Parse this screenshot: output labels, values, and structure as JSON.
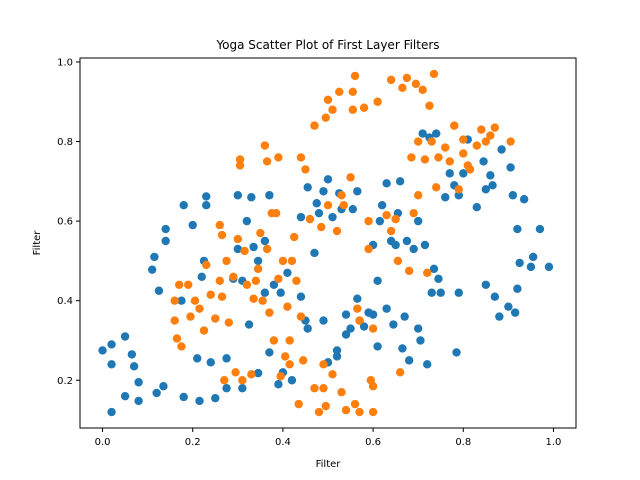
{
  "chart_data": {
    "type": "scatter",
    "title": "Yoga Scatter Plot of First Layer Filters",
    "xlabel": "Filter",
    "ylabel": "Filter",
    "xlim": [
      -0.05,
      1.05
    ],
    "ylim": [
      0.08,
      1.01
    ],
    "xticks": [
      "0.0",
      "0.2",
      "0.4",
      "0.6",
      "0.8",
      "1.0"
    ],
    "yticks": [
      "0.2",
      "0.4",
      "0.6",
      "0.8",
      "1.0"
    ],
    "grid": false,
    "series": [
      {
        "color": "#1f77b4",
        "points": [
          [
            0.0,
            0.275
          ],
          [
            0.02,
            0.29
          ],
          [
            0.02,
            0.24
          ],
          [
            0.02,
            0.12
          ],
          [
            0.05,
            0.31
          ],
          [
            0.05,
            0.16
          ],
          [
            0.065,
            0.265
          ],
          [
            0.07,
            0.235
          ],
          [
            0.08,
            0.195
          ],
          [
            0.08,
            0.148
          ],
          [
            0.11,
            0.478
          ],
          [
            0.115,
            0.51
          ],
          [
            0.12,
            0.168
          ],
          [
            0.125,
            0.425
          ],
          [
            0.135,
            0.185
          ],
          [
            0.14,
            0.58
          ],
          [
            0.14,
            0.55
          ],
          [
            0.175,
            0.4
          ],
          [
            0.18,
            0.64
          ],
          [
            0.18,
            0.158
          ],
          [
            0.2,
            0.59
          ],
          [
            0.21,
            0.255
          ],
          [
            0.215,
            0.148
          ],
          [
            0.22,
            0.46
          ],
          [
            0.225,
            0.5
          ],
          [
            0.23,
            0.64
          ],
          [
            0.23,
            0.662
          ],
          [
            0.24,
            0.245
          ],
          [
            0.25,
            0.155
          ],
          [
            0.275,
            0.255
          ],
          [
            0.275,
            0.18
          ],
          [
            0.29,
            0.455
          ],
          [
            0.3,
            0.665
          ],
          [
            0.3,
            0.53
          ],
          [
            0.31,
            0.18
          ],
          [
            0.31,
            0.45
          ],
          [
            0.32,
            0.6
          ],
          [
            0.325,
            0.34
          ],
          [
            0.33,
            0.66
          ],
          [
            0.335,
            0.535
          ],
          [
            0.345,
            0.218
          ],
          [
            0.345,
            0.5
          ],
          [
            0.36,
            0.42
          ],
          [
            0.36,
            0.55
          ],
          [
            0.37,
            0.665
          ],
          [
            0.37,
            0.27
          ],
          [
            0.38,
            0.44
          ],
          [
            0.39,
            0.19
          ],
          [
            0.395,
            0.42
          ],
          [
            0.4,
            0.22
          ],
          [
            0.41,
            0.47
          ],
          [
            0.42,
            0.2
          ],
          [
            0.44,
            0.61
          ],
          [
            0.44,
            0.41
          ],
          [
            0.45,
            0.35
          ],
          [
            0.455,
            0.33
          ],
          [
            0.455,
            0.685
          ],
          [
            0.47,
            0.52
          ],
          [
            0.475,
            0.645
          ],
          [
            0.48,
            0.62
          ],
          [
            0.49,
            0.675
          ],
          [
            0.49,
            0.35
          ],
          [
            0.5,
            0.705
          ],
          [
            0.5,
            0.245
          ],
          [
            0.51,
            0.61
          ],
          [
            0.52,
            0.26
          ],
          [
            0.52,
            0.275
          ],
          [
            0.525,
            0.67
          ],
          [
            0.53,
            0.63
          ],
          [
            0.54,
            0.365
          ],
          [
            0.54,
            0.315
          ],
          [
            0.55,
            0.33
          ],
          [
            0.555,
            0.63
          ],
          [
            0.565,
            0.405
          ],
          [
            0.565,
            0.675
          ],
          [
            0.57,
            0.35
          ],
          [
            0.58,
            0.335
          ],
          [
            0.59,
            0.37
          ],
          [
            0.6,
            0.54
          ],
          [
            0.6,
            0.365
          ],
          [
            0.61,
            0.285
          ],
          [
            0.61,
            0.45
          ],
          [
            0.615,
            0.6
          ],
          [
            0.62,
            0.64
          ],
          [
            0.63,
            0.695
          ],
          [
            0.63,
            0.38
          ],
          [
            0.64,
            0.55
          ],
          [
            0.645,
            0.34
          ],
          [
            0.65,
            0.54
          ],
          [
            0.655,
            0.62
          ],
          [
            0.66,
            0.7
          ],
          [
            0.665,
            0.28
          ],
          [
            0.67,
            0.36
          ],
          [
            0.675,
            0.55
          ],
          [
            0.68,
            0.25
          ],
          [
            0.69,
            0.53
          ],
          [
            0.7,
            0.6
          ],
          [
            0.7,
            0.33
          ],
          [
            0.705,
            0.3
          ],
          [
            0.71,
            0.82
          ],
          [
            0.715,
            0.54
          ],
          [
            0.72,
            0.24
          ],
          [
            0.725,
            0.81
          ],
          [
            0.73,
            0.42
          ],
          [
            0.735,
            0.48
          ],
          [
            0.74,
            0.82
          ],
          [
            0.745,
            0.455
          ],
          [
            0.75,
            0.42
          ],
          [
            0.76,
            0.66
          ],
          [
            0.77,
            0.72
          ],
          [
            0.78,
            0.69
          ],
          [
            0.785,
            0.27
          ],
          [
            0.79,
            0.42
          ],
          [
            0.79,
            0.665
          ],
          [
            0.8,
            0.72
          ],
          [
            0.81,
            0.805
          ],
          [
            0.83,
            0.635
          ],
          [
            0.845,
            0.75
          ],
          [
            0.85,
            0.68
          ],
          [
            0.85,
            0.44
          ],
          [
            0.86,
            0.715
          ],
          [
            0.865,
            0.69
          ],
          [
            0.87,
            0.41
          ],
          [
            0.88,
            0.36
          ],
          [
            0.885,
            0.78
          ],
          [
            0.9,
            0.385
          ],
          [
            0.905,
            0.735
          ],
          [
            0.91,
            0.665
          ],
          [
            0.915,
            0.37
          ],
          [
            0.92,
            0.58
          ],
          [
            0.92,
            0.43
          ],
          [
            0.925,
            0.495
          ],
          [
            0.935,
            0.655
          ],
          [
            0.95,
            0.485
          ],
          [
            0.955,
            0.51
          ],
          [
            0.97,
            0.58
          ],
          [
            0.99,
            0.485
          ]
        ]
      },
      {
        "color": "#ff7f0e",
        "points": [
          [
            0.16,
            0.4
          ],
          [
            0.16,
            0.35
          ],
          [
            0.165,
            0.305
          ],
          [
            0.17,
            0.44
          ],
          [
            0.175,
            0.285
          ],
          [
            0.19,
            0.44
          ],
          [
            0.195,
            0.36
          ],
          [
            0.205,
            0.4
          ],
          [
            0.215,
            0.38
          ],
          [
            0.225,
            0.325
          ],
          [
            0.23,
            0.49
          ],
          [
            0.24,
            0.415
          ],
          [
            0.25,
            0.355
          ],
          [
            0.26,
            0.45
          ],
          [
            0.26,
            0.59
          ],
          [
            0.265,
            0.565
          ],
          [
            0.265,
            0.41
          ],
          [
            0.27,
            0.2
          ],
          [
            0.275,
            0.5
          ],
          [
            0.28,
            0.345
          ],
          [
            0.29,
            0.46
          ],
          [
            0.295,
            0.22
          ],
          [
            0.3,
            0.555
          ],
          [
            0.305,
            0.74
          ],
          [
            0.305,
            0.755
          ],
          [
            0.31,
            0.2
          ],
          [
            0.315,
            0.525
          ],
          [
            0.32,
            0.44
          ],
          [
            0.33,
            0.215
          ],
          [
            0.335,
            0.405
          ],
          [
            0.34,
            0.45
          ],
          [
            0.345,
            0.48
          ],
          [
            0.35,
            0.57
          ],
          [
            0.355,
            0.4
          ],
          [
            0.36,
            0.79
          ],
          [
            0.365,
            0.75
          ],
          [
            0.365,
            0.53
          ],
          [
            0.37,
            0.37
          ],
          [
            0.375,
            0.62
          ],
          [
            0.38,
            0.3
          ],
          [
            0.385,
            0.62
          ],
          [
            0.39,
            0.455
          ],
          [
            0.39,
            0.76
          ],
          [
            0.395,
            0.21
          ],
          [
            0.4,
            0.5
          ],
          [
            0.405,
            0.26
          ],
          [
            0.41,
            0.385
          ],
          [
            0.415,
            0.3
          ],
          [
            0.415,
            0.24
          ],
          [
            0.42,
            0.5
          ],
          [
            0.425,
            0.56
          ],
          [
            0.43,
            0.45
          ],
          [
            0.435,
            0.14
          ],
          [
            0.44,
            0.76
          ],
          [
            0.44,
            0.36
          ],
          [
            0.445,
            0.25
          ],
          [
            0.45,
            0.73
          ],
          [
            0.46,
            0.605
          ],
          [
            0.47,
            0.18
          ],
          [
            0.47,
            0.84
          ],
          [
            0.48,
            0.12
          ],
          [
            0.485,
            0.585
          ],
          [
            0.49,
            0.24
          ],
          [
            0.49,
            0.18
          ],
          [
            0.495,
            0.135
          ],
          [
            0.495,
            0.86
          ],
          [
            0.5,
            0.905
          ],
          [
            0.5,
            0.64
          ],
          [
            0.51,
            0.88
          ],
          [
            0.51,
            0.215
          ],
          [
            0.52,
            0.575
          ],
          [
            0.525,
            0.925
          ],
          [
            0.53,
            0.665
          ],
          [
            0.53,
            0.17
          ],
          [
            0.535,
            0.64
          ],
          [
            0.54,
            0.125
          ],
          [
            0.55,
            0.71
          ],
          [
            0.555,
            0.925
          ],
          [
            0.555,
            0.88
          ],
          [
            0.56,
            0.965
          ],
          [
            0.56,
            0.14
          ],
          [
            0.565,
            0.38
          ],
          [
            0.57,
            0.12
          ],
          [
            0.57,
            0.35
          ],
          [
            0.58,
            0.885
          ],
          [
            0.59,
            0.6
          ],
          [
            0.59,
            0.53
          ],
          [
            0.595,
            0.2
          ],
          [
            0.6,
            0.185
          ],
          [
            0.6,
            0.12
          ],
          [
            0.6,
            0.33
          ],
          [
            0.61,
            0.9
          ],
          [
            0.63,
            0.615
          ],
          [
            0.64,
            0.955
          ],
          [
            0.64,
            0.575
          ],
          [
            0.65,
            0.605
          ],
          [
            0.655,
            0.5
          ],
          [
            0.66,
            0.22
          ],
          [
            0.665,
            0.935
          ],
          [
            0.675,
            0.96
          ],
          [
            0.68,
            0.475
          ],
          [
            0.685,
            0.76
          ],
          [
            0.69,
            0.62
          ],
          [
            0.695,
            0.945
          ],
          [
            0.7,
            0.8
          ],
          [
            0.7,
            0.665
          ],
          [
            0.71,
            0.93
          ],
          [
            0.715,
            0.755
          ],
          [
            0.72,
            0.47
          ],
          [
            0.725,
            0.89
          ],
          [
            0.73,
            0.8
          ],
          [
            0.735,
            0.97
          ],
          [
            0.74,
            0.685
          ],
          [
            0.745,
            0.76
          ],
          [
            0.76,
            0.785
          ],
          [
            0.77,
            0.75
          ],
          [
            0.78,
            0.84
          ],
          [
            0.79,
            0.68
          ],
          [
            0.8,
            0.805
          ],
          [
            0.8,
            0.77
          ],
          [
            0.81,
            0.74
          ],
          [
            0.815,
            0.73
          ],
          [
            0.83,
            0.79
          ],
          [
            0.84,
            0.83
          ],
          [
            0.85,
            0.8
          ],
          [
            0.86,
            0.815
          ],
          [
            0.87,
            0.835
          ],
          [
            0.905,
            0.8
          ]
        ]
      }
    ]
  }
}
